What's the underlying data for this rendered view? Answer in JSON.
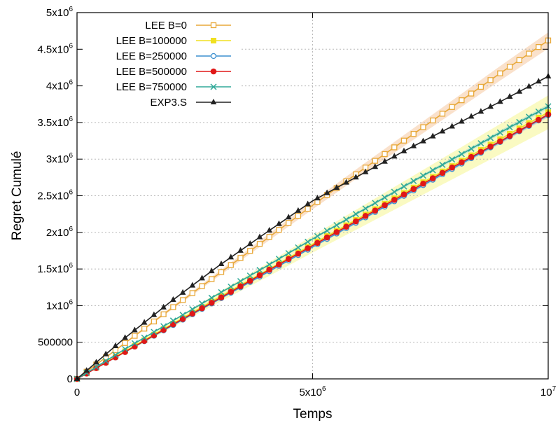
{
  "chart_data": {
    "type": "line",
    "xlabel": "Temps",
    "ylabel": "Regret Cumulé",
    "xlim": [
      0,
      10000000
    ],
    "ylim": [
      0,
      5000000
    ],
    "grid": true,
    "legend_position": "top-left",
    "x_ticks": [
      {
        "value": 0,
        "base": "0",
        "exp": ""
      },
      {
        "value": 5000000,
        "base": "5x10",
        "exp": "6"
      },
      {
        "value": 10000000,
        "base": "10",
        "exp": "7"
      }
    ],
    "y_ticks": [
      {
        "value": 0,
        "base": "0",
        "exp": ""
      },
      {
        "value": 500000,
        "base": "500000",
        "exp": ""
      },
      {
        "value": 1000000,
        "base": "1x10",
        "exp": "6"
      },
      {
        "value": 1500000,
        "base": "1.5x10",
        "exp": "6"
      },
      {
        "value": 2000000,
        "base": "2x10",
        "exp": "6"
      },
      {
        "value": 2500000,
        "base": "2.5x10",
        "exp": "6"
      },
      {
        "value": 3000000,
        "base": "3x10",
        "exp": "6"
      },
      {
        "value": 3500000,
        "base": "3.5x10",
        "exp": "6"
      },
      {
        "value": 4000000,
        "base": "4x10",
        "exp": "6"
      },
      {
        "value": 4500000,
        "base": "4.5x10",
        "exp": "6"
      },
      {
        "value": 5000000,
        "base": "5x10",
        "exp": "6"
      }
    ],
    "x": [
      0,
      1000000,
      2000000,
      3000000,
      4000000,
      5000000,
      6000000,
      7000000,
      8000000,
      9000000,
      10000000
    ],
    "series": [
      {
        "name": "LEE B=0",
        "color": "#e8a838",
        "marker": "square-open",
        "values": [
          0,
          480000,
          960000,
          1430000,
          1900000,
          2370000,
          2830000,
          3280000,
          3730000,
          4180000,
          4620000
        ],
        "band": 110000,
        "band_color": "#f5c9a0"
      },
      {
        "name": "LEE B=100000",
        "color": "#f0e020",
        "marker": "square-filled",
        "values": [
          0,
          370000,
          740000,
          1110000,
          1470000,
          1840000,
          2200000,
          2560000,
          2920000,
          3280000,
          3640000
        ],
        "band": 230000,
        "band_color": "#f6f690"
      },
      {
        "name": "LEE B=250000",
        "color": "#3b8fcf",
        "marker": "circle-open",
        "values": [
          0,
          360000,
          720000,
          1080000,
          1440000,
          1800000,
          2160000,
          2520000,
          2880000,
          3240000,
          3600000
        ],
        "band": 30000,
        "band_color": "#a9cfea"
      },
      {
        "name": "LEE B=500000",
        "color": "#e01818",
        "marker": "circle-filled",
        "values": [
          0,
          360000,
          730000,
          1090000,
          1460000,
          1820000,
          2180000,
          2540000,
          2900000,
          3250000,
          3610000
        ],
        "band": 30000,
        "band_color": "#f2a0a0"
      },
      {
        "name": "LEE B=750000",
        "color": "#30a898",
        "marker": "cross",
        "values": [
          0,
          400000,
          780000,
          1160000,
          1530000,
          1910000,
          2280000,
          2650000,
          3010000,
          3370000,
          3720000
        ],
        "band": 30000,
        "band_color": "#a0dcd4"
      },
      {
        "name": "EXP3.S",
        "color": "#222222",
        "marker": "triangle",
        "values": [
          0,
          550000,
          1060000,
          1540000,
          1990000,
          2430000,
          2780000,
          3130000,
          3460000,
          3790000,
          4130000
        ],
        "band": 0,
        "band_color": "#cccccc"
      }
    ]
  }
}
